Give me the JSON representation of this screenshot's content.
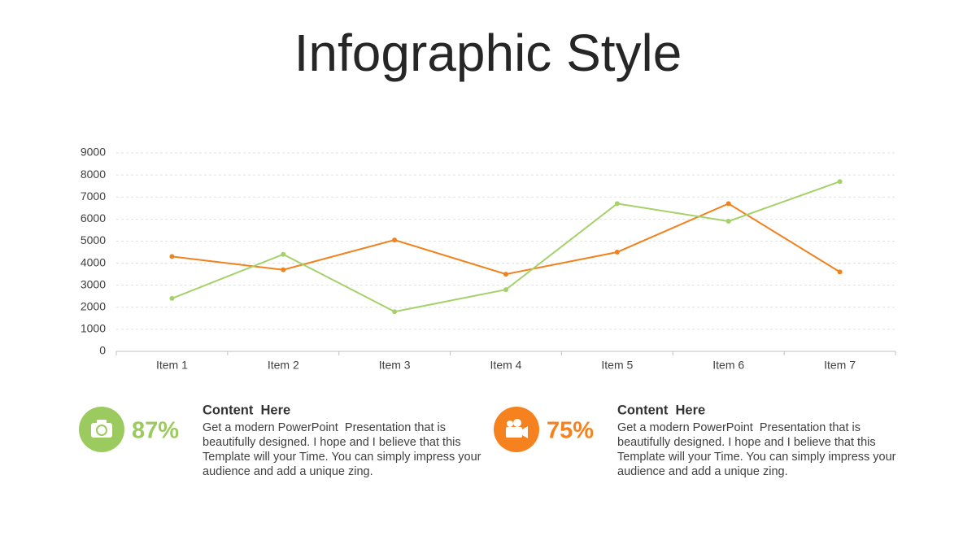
{
  "chart_data": {
    "type": "line",
    "title": "Infographic Style",
    "categories": [
      "Item 1",
      "Item 2",
      "Item 3",
      "Item 4",
      "Item 5",
      "Item 6",
      "Item 7"
    ],
    "series": [
      {
        "color": "#f0821e",
        "values": [
          4300,
          3700,
          5050,
          3500,
          4500,
          6700,
          3600
        ]
      },
      {
        "color": "#a5d16b",
        "values": [
          2400,
          4400,
          1800,
          2800,
          6700,
          5900,
          7700
        ]
      }
    ],
    "ylim": [
      0,
      9000
    ],
    "yticks": [
      0,
      1000,
      2000,
      3000,
      4000,
      5000,
      6000,
      7000,
      8000,
      9000
    ],
    "grid": true
  },
  "blocks": [
    {
      "stat": "87%",
      "color": "#9bcb5f",
      "heading": "Content  Here",
      "lines": [
        "Get a modern PowerPoint  Presentation that is",
        "beautifully designed. I hope and I believe that this",
        "Template will your Time. You can simply impress your",
        "audience and add a unique zing."
      ]
    },
    {
      "stat": "75%",
      "color": "#f5821f",
      "heading": "Content  Here",
      "lines": [
        "Get a modern PowerPoint  Presentation that is",
        "beautifully designed. I hope and I believe that this",
        "Template will your Time. You can simply impress your",
        "audience and add a unique zing."
      ]
    }
  ]
}
